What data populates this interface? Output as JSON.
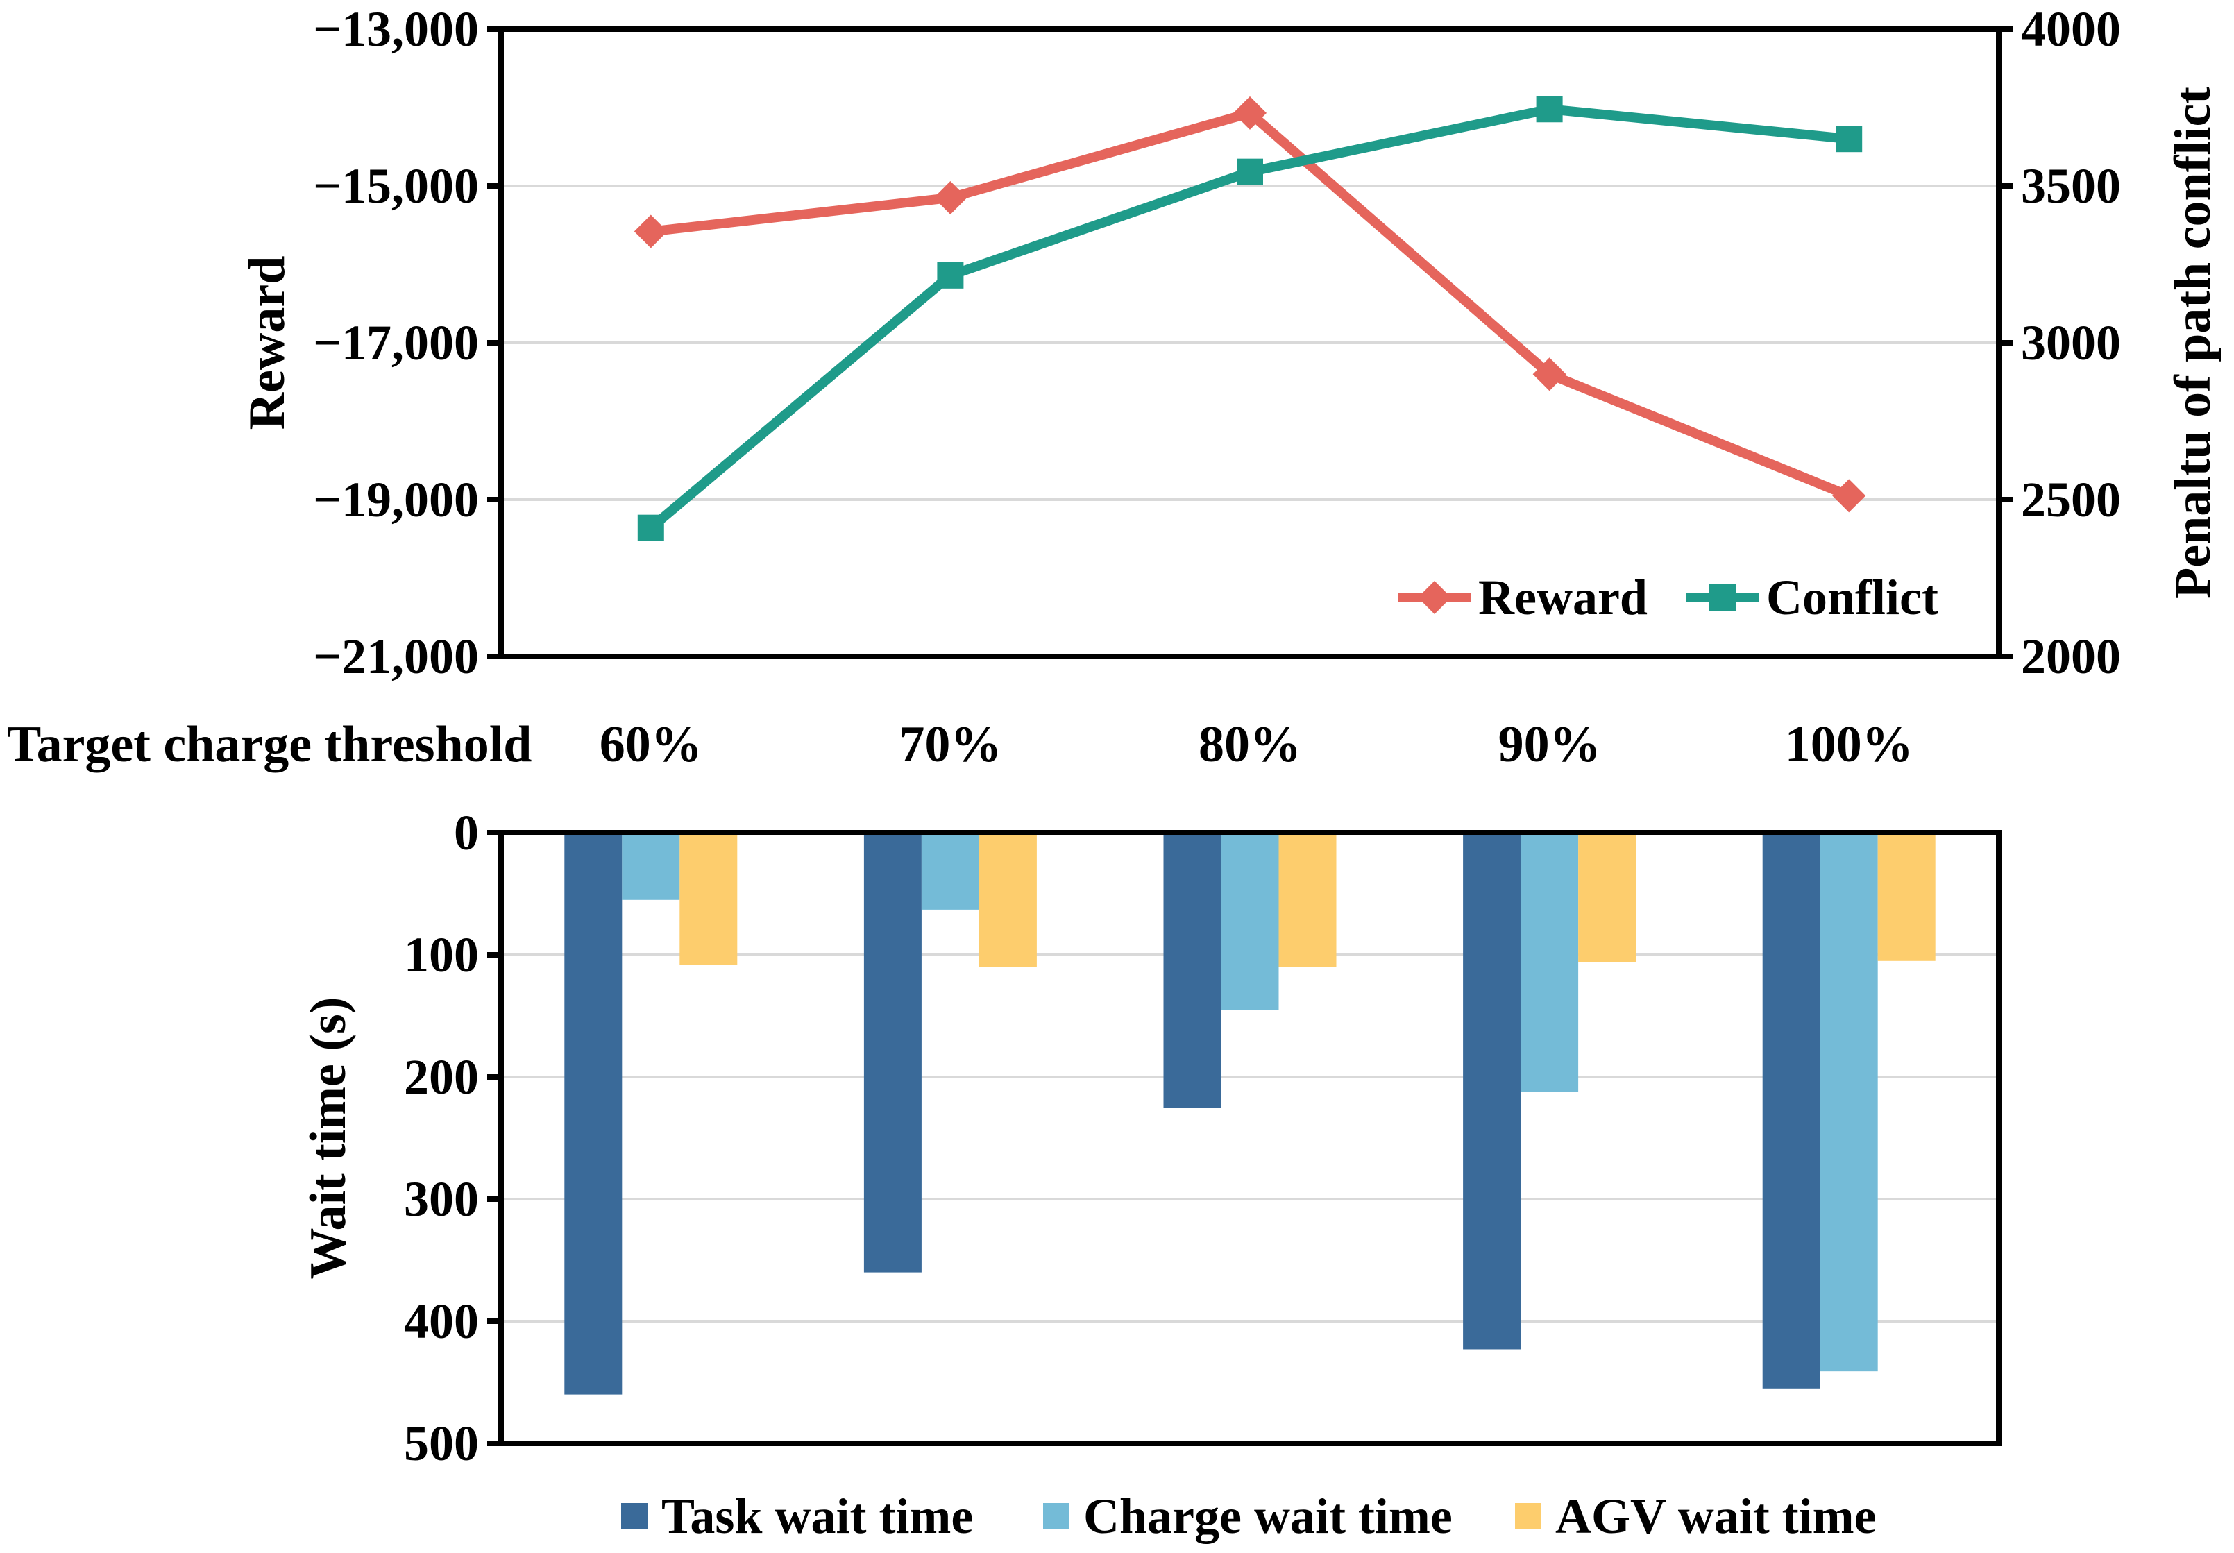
{
  "chart_data": [
    {
      "type": "line",
      "title": "",
      "categories": [
        "60%",
        "70%",
        "80%",
        "90%",
        "100%"
      ],
      "xlabel": "Target charge threshold",
      "left_axis": {
        "label": "Reward",
        "range": [
          -21000,
          -13000
        ],
        "tick_step": 2000,
        "tick_labels": [
          "−13,000",
          "−15,000",
          "−17,000",
          "−19,000",
          "−21,000"
        ]
      },
      "right_axis": {
        "label": "Penaltu of path conflict",
        "range": [
          2000,
          4000
        ],
        "tick_step": 500,
        "tick_labels": [
          "4000",
          "3500",
          "3000",
          "2500",
          "2000"
        ]
      },
      "grid": "horizontal",
      "legend_position": "inside-bottom-right",
      "series": [
        {
          "name": "Reward",
          "axis": "left",
          "marker": "diamond",
          "color": "#E5655C",
          "values": [
            -15580,
            -15150,
            -14070,
            -17400,
            -18950
          ]
        },
        {
          "name": "Conflict",
          "axis": "right",
          "marker": "square",
          "color": "#1F9B8A",
          "values": [
            2410,
            3215,
            3545,
            3745,
            3650
          ]
        }
      ]
    },
    {
      "type": "bar",
      "title": "",
      "categories": [
        "60%",
        "70%",
        "80%",
        "90%",
        "100%"
      ],
      "ylabel": "Wait time (s)",
      "y_axis": {
        "range": [
          0,
          500
        ],
        "inverted": true,
        "tick_step": 100,
        "tick_labels": [
          "0",
          "100",
          "200",
          "300",
          "400",
          "500"
        ]
      },
      "grid": "horizontal",
      "legend_position": "bottom",
      "series": [
        {
          "name": "Task wait time",
          "color": "#3A6A99",
          "values": [
            460,
            360,
            225,
            423,
            455
          ]
        },
        {
          "name": "Charge wait time",
          "color": "#74BBD7",
          "values": [
            55,
            63,
            145,
            212,
            441
          ]
        },
        {
          "name": "AGV wait time",
          "color": "#FDCD6D",
          "values": [
            108,
            110,
            110,
            106,
            105
          ]
        }
      ]
    }
  ],
  "styles": {
    "background": "#FFFFFF",
    "axis_color": "#000000",
    "grid_color": "#D9D9D9",
    "text_color": "#000000"
  }
}
